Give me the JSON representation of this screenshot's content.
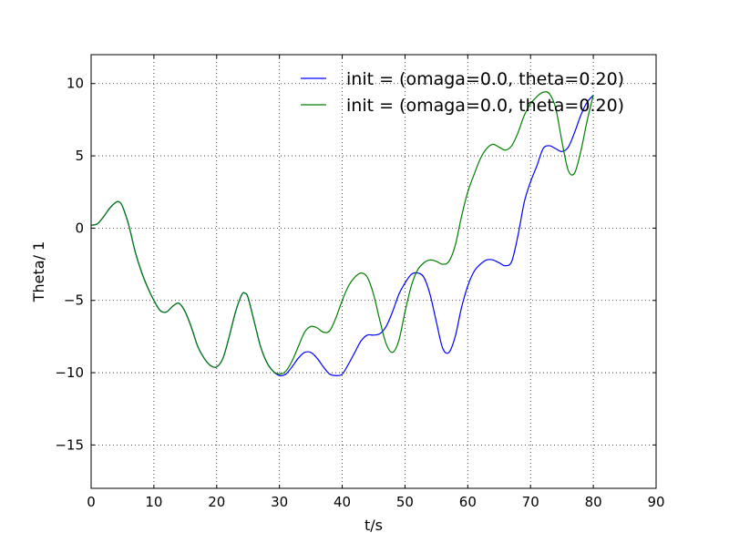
{
  "chart_data": {
    "type": "line",
    "title": "",
    "xlabel": "t/s",
    "ylabel": "Theta/ 1",
    "xlim": [
      0,
      90
    ],
    "ylim": [
      -18,
      12
    ],
    "xticks": [
      0,
      10,
      20,
      30,
      40,
      50,
      60,
      70,
      80,
      90
    ],
    "yticks": [
      -15,
      -10,
      -5,
      0,
      5,
      10
    ],
    "xtick_labels": [
      "0",
      "10",
      "20",
      "30",
      "40",
      "50",
      "60",
      "70",
      "80",
      "90"
    ],
    "ytick_labels": [
      "−15",
      "−10",
      "−5",
      "0",
      "5",
      "10"
    ],
    "grid": true,
    "legend_position": "top-right",
    "series": [
      {
        "name": "init = (omaga=0.0, theta=0.20)",
        "color": "#0000ff",
        "x": [
          0,
          1,
          2,
          3,
          4,
          4.5,
          5,
          6,
          7,
          8,
          9,
          10,
          11,
          12,
          13,
          14,
          15,
          16,
          17,
          18,
          19,
          20,
          21,
          22,
          23,
          24,
          24.5,
          25,
          26,
          27,
          28,
          29,
          30,
          31,
          32,
          33,
          34,
          35,
          36,
          37,
          38,
          39,
          40,
          41,
          42,
          43,
          44,
          45,
          46,
          47,
          48,
          49,
          50,
          51,
          52,
          53,
          54,
          55,
          56,
          57,
          58,
          59,
          60,
          61,
          62,
          63,
          64,
          65,
          66,
          67,
          68,
          69,
          70,
          71,
          72,
          73,
          74,
          75,
          76,
          77,
          78,
          79,
          80
        ],
        "y": [
          0.2,
          0.3,
          0.8,
          1.4,
          1.8,
          1.8,
          1.5,
          0.2,
          -1.6,
          -3.0,
          -4.1,
          -5.0,
          -5.7,
          -5.8,
          -5.4,
          -5.2,
          -5.8,
          -6.9,
          -8.2,
          -9.0,
          -9.5,
          -9.6,
          -9.0,
          -7.5,
          -5.8,
          -4.6,
          -4.5,
          -4.8,
          -6.5,
          -8.2,
          -9.3,
          -9.9,
          -10.2,
          -10.1,
          -9.6,
          -9.0,
          -8.6,
          -8.6,
          -9.0,
          -9.6,
          -10.1,
          -10.2,
          -10.1,
          -9.4,
          -8.6,
          -7.8,
          -7.4,
          -7.4,
          -7.3,
          -6.8,
          -5.8,
          -4.6,
          -3.8,
          -3.2,
          -3.1,
          -3.4,
          -4.6,
          -6.5,
          -8.3,
          -8.6,
          -7.5,
          -5.5,
          -4.0,
          -3.0,
          -2.5,
          -2.2,
          -2.2,
          -2.4,
          -2.6,
          -2.3,
          -0.5,
          1.8,
          3.2,
          4.3,
          5.5,
          5.7,
          5.5,
          5.3,
          5.6,
          6.6,
          7.8,
          8.7,
          9.2
        ]
      },
      {
        "name": "init = (omaga=0.0, theta=0.20)",
        "color": "#007f00",
        "x": [
          0,
          1,
          2,
          3,
          4,
          4.5,
          5,
          6,
          7,
          8,
          9,
          10,
          11,
          12,
          13,
          14,
          15,
          16,
          17,
          18,
          19,
          20,
          21,
          22,
          23,
          24,
          24.5,
          25,
          26,
          27,
          28,
          29,
          30,
          31,
          32,
          33,
          34,
          35,
          36,
          37,
          38,
          39,
          40,
          41,
          42,
          43,
          44,
          45,
          46,
          47,
          48,
          49,
          50,
          51,
          52,
          53,
          54,
          55,
          56,
          57,
          58,
          59,
          60,
          61,
          62,
          63,
          64,
          65,
          66,
          67,
          68,
          69,
          70,
          71,
          72,
          73,
          74,
          75,
          76,
          77,
          78,
          79,
          80
        ],
        "y": [
          0.2,
          0.3,
          0.8,
          1.4,
          1.8,
          1.8,
          1.5,
          0.2,
          -1.6,
          -3.0,
          -4.1,
          -5.0,
          -5.7,
          -5.8,
          -5.4,
          -5.2,
          -5.8,
          -6.9,
          -8.2,
          -9.0,
          -9.5,
          -9.6,
          -9.0,
          -7.5,
          -5.8,
          -4.6,
          -4.5,
          -4.8,
          -6.5,
          -8.2,
          -9.3,
          -9.9,
          -10.1,
          -9.9,
          -9.2,
          -8.2,
          -7.2,
          -6.8,
          -6.9,
          -7.2,
          -7.1,
          -6.2,
          -5.0,
          -4.0,
          -3.4,
          -3.1,
          -3.4,
          -4.6,
          -6.4,
          -8.0,
          -8.6,
          -7.8,
          -5.8,
          -4.0,
          -2.9,
          -2.4,
          -2.2,
          -2.3,
          -2.5,
          -2.3,
          -1.2,
          0.8,
          2.5,
          3.7,
          4.8,
          5.5,
          5.8,
          5.6,
          5.4,
          5.7,
          6.6,
          7.8,
          8.6,
          9.1,
          9.4,
          9.3,
          8.3,
          6.0,
          4.0,
          3.8,
          5.3,
          7.4,
          9.2
        ]
      }
    ]
  }
}
